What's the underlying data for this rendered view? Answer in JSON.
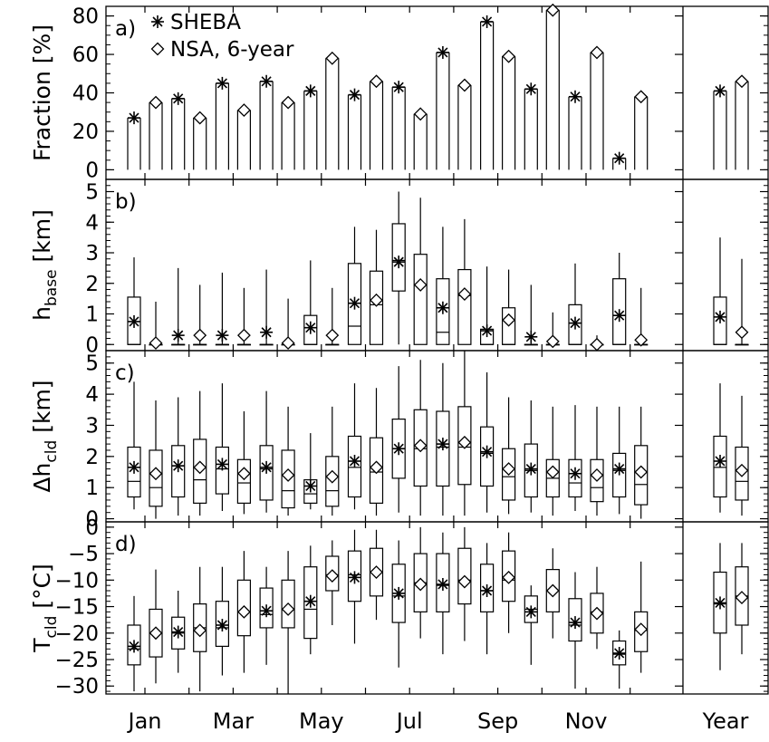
{
  "chart_data": [
    {
      "panel": "a)",
      "type": "bar",
      "ylabel": "Fraction [%]",
      "ylim": [
        -5,
        85
      ],
      "yticks": [
        "0",
        "20",
        "40",
        "60",
        "80"
      ],
      "categories": [
        "Jan",
        "Feb",
        "Mar",
        "Apr",
        "May",
        "Jun",
        "Jul",
        "Aug",
        "Sep",
        "Oct",
        "Nov",
        "Dec",
        "Year"
      ],
      "series": [
        {
          "name": "SHEBA",
          "marker": "asterisk",
          "values": [
            27,
            37,
            45,
            46,
            41,
            39,
            43,
            61,
            77,
            42,
            38,
            6,
            41
          ]
        },
        {
          "name": "NSA, 6-year",
          "marker": "diamond",
          "values": [
            35,
            27,
            31,
            35,
            58,
            46,
            29,
            44,
            59,
            83,
            61,
            38,
            46
          ]
        }
      ]
    },
    {
      "panel": "b)",
      "type": "box",
      "ylabel": "hbase [km]",
      "ylim": [
        -0.2,
        5.4
      ],
      "yticks": [
        "0",
        "1",
        "2",
        "3",
        "4",
        "5"
      ],
      "series": [
        {
          "name": "SHEBA",
          "marker": "asterisk",
          "boxes": [
            {
              "lo": 0,
              "q1": 0,
              "med": 0,
              "q3": 1.55,
              "hi": 2.85,
              "mean": 0.75
            },
            {
              "lo": 0,
              "q1": 0,
              "med": 0,
              "q3": 0,
              "hi": 2.5,
              "mean": 0.3
            },
            {
              "lo": 0,
              "q1": 0,
              "med": 0,
              "q3": 0,
              "hi": 2.35,
              "mean": 0.3
            },
            {
              "lo": 0,
              "q1": 0,
              "med": 0,
              "q3": 0,
              "hi": 2.45,
              "mean": 0.4
            },
            {
              "lo": 0,
              "q1": 0,
              "med": 0,
              "q3": 0.95,
              "hi": 2.75,
              "mean": 0.55
            },
            {
              "lo": 0,
              "q1": 0,
              "med": 0.6,
              "q3": 2.65,
              "hi": 3.85,
              "mean": 1.35
            },
            {
              "lo": 0,
              "q1": 1.75,
              "med": 2.75,
              "q3": 3.95,
              "hi": 5.0,
              "mean": 2.7
            },
            {
              "lo": 0,
              "q1": 0,
              "med": 0.4,
              "q3": 2.15,
              "hi": 3.85,
              "mean": 1.2
            },
            {
              "lo": 0,
              "q1": 0,
              "med": 0,
              "q3": 0.5,
              "hi": 2.55,
              "mean": 0.45
            },
            {
              "lo": 0,
              "q1": 0,
              "med": 0,
              "q3": 0,
              "hi": 1.95,
              "mean": 0.25
            },
            {
              "lo": 0,
              "q1": 0,
              "med": 0,
              "q3": 1.3,
              "hi": 2.65,
              "mean": 0.7
            },
            {
              "lo": 0,
              "q1": 0,
              "med": 0,
              "q3": 2.15,
              "hi": 3.0,
              "mean": 0.95
            },
            {
              "lo": 0,
              "q1": 0,
              "med": 0,
              "q3": 1.55,
              "hi": 3.5,
              "mean": 0.9
            }
          ]
        },
        {
          "name": "NSA, 6-year",
          "marker": "diamond",
          "boxes": [
            {
              "lo": 0,
              "q1": 0,
              "med": 0,
              "q3": 0,
              "hi": 1.4,
              "mean": 0.05
            },
            {
              "lo": 0,
              "q1": 0,
              "med": 0,
              "q3": 0,
              "hi": 1.95,
              "mean": 0.3
            },
            {
              "lo": 0,
              "q1": 0,
              "med": 0,
              "q3": 0,
              "hi": 1.85,
              "mean": 0.3
            },
            {
              "lo": 0,
              "q1": 0,
              "med": 0,
              "q3": 0,
              "hi": 1.5,
              "mean": 0.05
            },
            {
              "lo": 0,
              "q1": 0,
              "med": 0,
              "q3": 0,
              "hi": 1.85,
              "mean": 0.3
            },
            {
              "lo": 0,
              "q1": 0,
              "med": 1.3,
              "q3": 2.4,
              "hi": 3.75,
              "mean": 1.45
            },
            {
              "lo": 0,
              "q1": 0,
              "med": 1.95,
              "q3": 2.95,
              "hi": 4.8,
              "mean": 1.95
            },
            {
              "lo": 0,
              "q1": 0,
              "med": 1.6,
              "q3": 2.45,
              "hi": 4.1,
              "mean": 1.65
            },
            {
              "lo": 0,
              "q1": 0,
              "med": 0,
              "q3": 1.2,
              "hi": 2.45,
              "mean": 0.8
            },
            {
              "lo": 0,
              "q1": 0,
              "med": 0,
              "q3": 0,
              "hi": 1.05,
              "mean": 0.1
            },
            {
              "lo": 0,
              "q1": 0,
              "med": 0,
              "q3": 0,
              "hi": 0.3,
              "mean": 0.0
            },
            {
              "lo": 0,
              "q1": 0,
              "med": 0,
              "q3": 0,
              "hi": 1.85,
              "mean": 0.15
            },
            {
              "lo": 0,
              "q1": 0,
              "med": 0,
              "q3": 0,
              "hi": 2.8,
              "mean": 0.4
            }
          ]
        }
      ]
    },
    {
      "panel": "c)",
      "type": "box",
      "ylabel": "Δhcld [km]",
      "ylim": [
        -0.1,
        5.4
      ],
      "yticks": [
        "0",
        "1",
        "2",
        "3",
        "4",
        "5"
      ],
      "series": [
        {
          "name": "SHEBA",
          "marker": "asterisk",
          "boxes": [
            {
              "lo": 0.3,
              "q1": 0.7,
              "med": 1.2,
              "q3": 2.3,
              "hi": 4.4,
              "mean": 1.65
            },
            {
              "lo": 0.1,
              "q1": 0.7,
              "med": 1.7,
              "q3": 2.35,
              "hi": 3.9,
              "mean": 1.7
            },
            {
              "lo": 0.25,
              "q1": 0.8,
              "med": 1.6,
              "q3": 2.3,
              "hi": 4.35,
              "mean": 1.75
            },
            {
              "lo": 0.2,
              "q1": 0.6,
              "med": 1.6,
              "q3": 2.35,
              "hi": 4.1,
              "mean": 1.65
            },
            {
              "lo": 0.3,
              "q1": 0.5,
              "med": 0.8,
              "q3": 1.25,
              "hi": 2.75,
              "mean": 1.05
            },
            {
              "lo": 0.3,
              "q1": 0.7,
              "med": 1.65,
              "q3": 2.65,
              "hi": 4.35,
              "mean": 1.85
            },
            {
              "lo": 0.2,
              "q1": 1.3,
              "med": 2.25,
              "q3": 3.2,
              "hi": 4.9,
              "mean": 2.25
            },
            {
              "lo": 0.1,
              "q1": 1.05,
              "med": 2.3,
              "q3": 3.45,
              "hi": 5.0,
              "mean": 2.4
            },
            {
              "lo": 0.2,
              "q1": 1.05,
              "med": 2.1,
              "q3": 2.95,
              "hi": 4.7,
              "mean": 2.15
            },
            {
              "lo": 0.2,
              "q1": 0.7,
              "med": 1.55,
              "q3": 2.4,
              "hi": 3.8,
              "mean": 1.6
            },
            {
              "lo": 0.25,
              "q1": 0.7,
              "med": 1.15,
              "q3": 1.9,
              "hi": 3.65,
              "mean": 1.45
            },
            {
              "lo": 0.15,
              "q1": 0.7,
              "med": 1.55,
              "q3": 2.1,
              "hi": 3.6,
              "mean": 1.6
            },
            {
              "lo": 0.2,
              "q1": 0.7,
              "med": 1.65,
              "q3": 2.65,
              "hi": 4.35,
              "mean": 1.85
            }
          ]
        },
        {
          "name": "NSA, 6-year",
          "marker": "diamond",
          "boxes": [
            {
              "lo": 0,
              "q1": 0.4,
              "med": 1.0,
              "q3": 2.2,
              "hi": 3.8,
              "mean": 1.45
            },
            {
              "lo": 0.1,
              "q1": 0.5,
              "med": 1.25,
              "q3": 2.55,
              "hi": 4.1,
              "mean": 1.65
            },
            {
              "lo": 0.15,
              "q1": 0.5,
              "med": 1.15,
              "q3": 1.9,
              "hi": 3.45,
              "mean": 1.45
            },
            {
              "lo": 0.1,
              "q1": 0.35,
              "med": 0.9,
              "q3": 2.2,
              "hi": 3.6,
              "mean": 1.4
            },
            {
              "lo": 0.1,
              "q1": 0.4,
              "med": 0.9,
              "q3": 2.0,
              "hi": 3.6,
              "mean": 1.35
            },
            {
              "lo": 0.1,
              "q1": 0.5,
              "med": 1.5,
              "q3": 2.6,
              "hi": 4.2,
              "mean": 1.65
            },
            {
              "lo": 0.1,
              "q1": 1.05,
              "med": 2.25,
              "q3": 3.5,
              "hi": 5.1,
              "mean": 2.35
            },
            {
              "lo": 0.1,
              "q1": 1.1,
              "med": 2.3,
              "q3": 3.6,
              "hi": 5.4,
              "mean": 2.45
            },
            {
              "lo": 0.15,
              "q1": 0.6,
              "med": 1.35,
              "q3": 2.25,
              "hi": 3.9,
              "mean": 1.6
            },
            {
              "lo": 0.1,
              "q1": 0.7,
              "med": 1.3,
              "q3": 1.9,
              "hi": 3.6,
              "mean": 1.5
            },
            {
              "lo": 0.1,
              "q1": 0.55,
              "med": 1.0,
              "q3": 1.9,
              "hi": 3.6,
              "mean": 1.4
            },
            {
              "lo": 0,
              "q1": 0.45,
              "med": 1.1,
              "q3": 2.35,
              "hi": 3.6,
              "mean": 1.5
            },
            {
              "lo": 0.1,
              "q1": 0.6,
              "med": 1.2,
              "q3": 2.3,
              "hi": 3.95,
              "mean": 1.55
            }
          ]
        }
      ]
    },
    {
      "panel": "d)",
      "type": "box",
      "ylabel": "Tcld [°C]",
      "ylim": [
        -31.5,
        1.0
      ],
      "yticks": [
        "0",
        "−5",
        "−10",
        "−15",
        "−20",
        "−25",
        "−30"
      ],
      "series": [
        {
          "name": "SHEBA",
          "marker": "asterisk",
          "boxes": [
            {
              "lo": -31,
              "q1": -26,
              "med": -23,
              "q3": -18.5,
              "hi": -13,
              "mean": -22.5
            },
            {
              "lo": -27.5,
              "q1": -23,
              "med": -20,
              "q3": -17,
              "hi": -12,
              "mean": -19.8
            },
            {
              "lo": -28,
              "q1": -22.5,
              "med": -19,
              "q3": -14,
              "hi": -7.5,
              "mean": -18.5
            },
            {
              "lo": -26,
              "q1": -19,
              "med": -16.5,
              "q3": -11.5,
              "hi": -7.5,
              "mean": -15.8
            },
            {
              "lo": -24,
              "q1": -21,
              "med": -15.5,
              "q3": -7.5,
              "hi": -3.5,
              "mean": -14
            },
            {
              "lo": -22,
              "q1": -14,
              "med": -9,
              "q3": -4.5,
              "hi": -0.5,
              "mean": -9.5
            },
            {
              "lo": -26.5,
              "q1": -18,
              "med": -13,
              "q3": -7,
              "hi": -2.5,
              "mean": -12.5
            },
            {
              "lo": -24,
              "q1": -16,
              "med": -11,
              "q3": -5,
              "hi": -1,
              "mean": -10.8
            },
            {
              "lo": -24,
              "q1": -16,
              "med": -12,
              "q3": -7,
              "hi": -3,
              "mean": -12
            },
            {
              "lo": -26,
              "q1": -18,
              "med": -15.5,
              "q3": -13,
              "hi": -11,
              "mean": -16
            },
            {
              "lo": -30.5,
              "q1": -21.5,
              "med": -18.5,
              "q3": -13.5,
              "hi": -8.5,
              "mean": -18
            },
            {
              "lo": -30.5,
              "q1": -26,
              "med": -24,
              "q3": -21.5,
              "hi": -19.5,
              "mean": -23.8
            },
            {
              "lo": -27,
              "q1": -20,
              "med": -14.5,
              "q3": -8.5,
              "hi": -3,
              "mean": -14.3
            }
          ]
        },
        {
          "name": "NSA, 6-year",
          "marker": "diamond",
          "boxes": [
            {
              "lo": -29.5,
              "q1": -24.5,
              "med": -20,
              "q3": -15.5,
              "hi": -8,
              "mean": -20
            },
            {
              "lo": -31,
              "q1": -23.5,
              "med": -19,
              "q3": -14.5,
              "hi": -7.5,
              "mean": -19.5
            },
            {
              "lo": -27.5,
              "q1": -20.5,
              "med": -16,
              "q3": -10,
              "hi": -4.5,
              "mean": -16
            },
            {
              "lo": -31.5,
              "q1": -19,
              "med": -15.5,
              "q3": -10,
              "hi": -4.5,
              "mean": -15.5
            },
            {
              "lo": -18.5,
              "q1": -12,
              "med": -9,
              "q3": -5.5,
              "hi": -2.5,
              "mean": -9.2
            },
            {
              "lo": -17.5,
              "q1": -13,
              "med": -8.5,
              "q3": -4,
              "hi": -0.5,
              "mean": -8.5
            },
            {
              "lo": -21,
              "q1": -16,
              "med": -10.5,
              "q3": -5,
              "hi": 0,
              "mean": -10.8
            },
            {
              "lo": -21.5,
              "q1": -14.5,
              "med": -10,
              "q3": -4,
              "hi": 0,
              "mean": -10.3
            },
            {
              "lo": -20,
              "q1": -14,
              "med": -10,
              "q3": -4.5,
              "hi": -1,
              "mean": -9.5
            },
            {
              "lo": -21,
              "q1": -16,
              "med": -12,
              "q3": -8,
              "hi": -4,
              "mean": -12
            },
            {
              "lo": -23,
              "q1": -20,
              "med": -16,
              "q3": -12.5,
              "hi": -7.5,
              "mean": -16.3
            },
            {
              "lo": -27.5,
              "q1": -23.5,
              "med": -19.5,
              "q3": -16,
              "hi": -6.5,
              "mean": -19.3
            },
            {
              "lo": -24,
              "q1": -18.5,
              "med": -13,
              "q3": -7.5,
              "hi": -3,
              "mean": -13.3
            }
          ]
        }
      ]
    }
  ],
  "xticks": [
    "Jan",
    "Mar",
    "May",
    "Jul",
    "Sep",
    "Nov",
    "Year"
  ],
  "legend": [
    {
      "label": "SHEBA",
      "marker": "asterisk"
    },
    {
      "label": "NSA, 6-year",
      "marker": "diamond"
    }
  ]
}
